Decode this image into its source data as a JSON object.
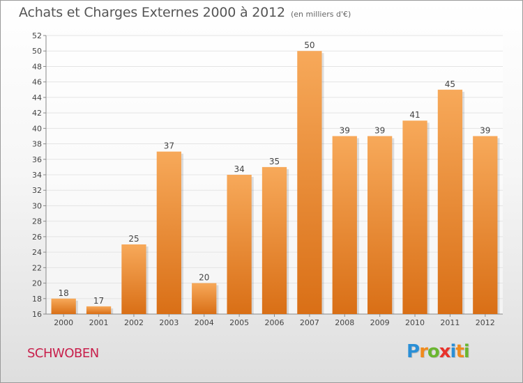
{
  "header": {
    "title": "Achats et Charges Externes 2000 à 2012",
    "unit": "(en milliers d'€)"
  },
  "commune": "SCHWOBEN",
  "brand": {
    "name": "Proxiti",
    "letters": [
      "P",
      "r",
      "o",
      "x",
      "i",
      "t",
      "i"
    ],
    "colors": [
      "#2a8fd6",
      "#f08a1c",
      "#6ab630",
      "#e8322b",
      "#2a8fd6",
      "#f08a1c",
      "#6ab630"
    ]
  },
  "colors": {
    "bar_top": "#f7a95a",
    "bar_bottom": "#d96f16",
    "grid": "#e4e4e4",
    "axis": "#888888",
    "text": "#444444"
  },
  "chart_data": {
    "type": "bar",
    "title": "Achats et Charges Externes 2000 à 2012",
    "categories": [
      "2000",
      "2001",
      "2002",
      "2003",
      "2004",
      "2005",
      "2006",
      "2007",
      "2008",
      "2009",
      "2010",
      "2011",
      "2012"
    ],
    "values": [
      18,
      17,
      25,
      37,
      20,
      34,
      35,
      50,
      39,
      39,
      41,
      45,
      39
    ],
    "ylim": [
      16,
      52
    ],
    "yticks": [
      "16",
      "18",
      "20",
      "22",
      "24",
      "26",
      "28",
      "30",
      "32",
      "34",
      "36",
      "38",
      "40",
      "42",
      "44",
      "46",
      "48",
      "50",
      "52"
    ],
    "grid": true,
    "data_labels": true,
    "legend": "none"
  }
}
